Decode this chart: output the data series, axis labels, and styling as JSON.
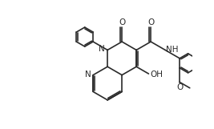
{
  "bg_color": "#ffffff",
  "line_color": "#2a2a2a",
  "lw": 1.2,
  "fs": 7.5,
  "BL": 0.27,
  "xlim": [
    0,
    2.67
  ],
  "ylim": [
    0,
    1.61
  ]
}
